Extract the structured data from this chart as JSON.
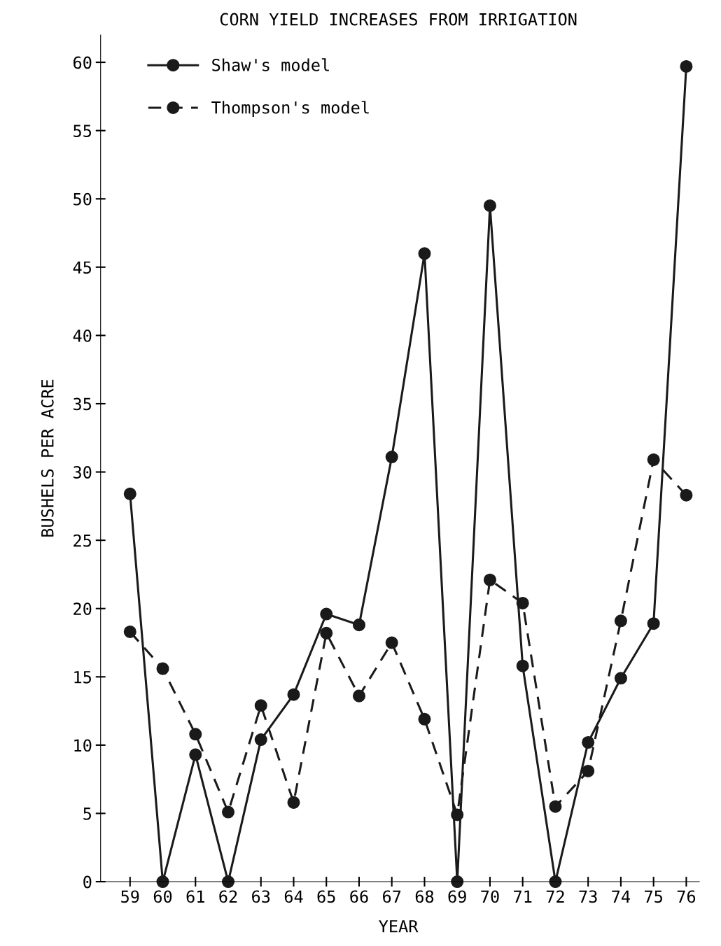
{
  "chart_data": {
    "type": "line",
    "title": "CORN YIELD INCREASES FROM IRRIGATION",
    "xlabel": "YEAR",
    "ylabel": "BUSHELS PER ACRE",
    "categories": [
      "59",
      "60",
      "61",
      "62",
      "63",
      "64",
      "65",
      "66",
      "67",
      "68",
      "69",
      "70",
      "71",
      "72",
      "73",
      "74",
      "75",
      "76"
    ],
    "series": [
      {
        "name": "Shaw's model",
        "color": "#1a1a1a",
        "line_style": "solid",
        "values": [
          28.4,
          0,
          9.3,
          0,
          10.4,
          13.7,
          19.6,
          18.8,
          31.1,
          46.0,
          0,
          49.5,
          15.8,
          0,
          10.2,
          14.9,
          18.9,
          59.7
        ]
      },
      {
        "name": "Thompson's model",
        "color": "#1a1a1a",
        "line_style": "dashed",
        "values": [
          18.3,
          15.6,
          10.8,
          5.1,
          12.9,
          5.8,
          18.2,
          13.6,
          17.5,
          11.9,
          4.9,
          22.1,
          20.4,
          5.5,
          8.1,
          19.1,
          30.9,
          28.3
        ]
      }
    ],
    "ylim": [
      0,
      62
    ],
    "yticks": [
      0,
      5,
      10,
      15,
      20,
      25,
      30,
      35,
      40,
      45,
      50,
      55,
      60
    ],
    "marker": "circle",
    "legend": "top left",
    "grid": false
  }
}
